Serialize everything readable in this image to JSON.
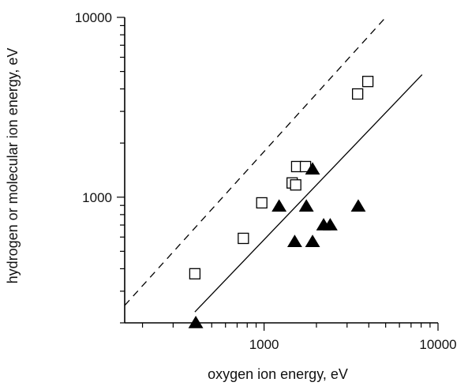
{
  "chart_data": {
    "type": "scatter",
    "title": "",
    "xlabel": "oxygen ion energy,  eV",
    "ylabel": "hydrogen or molecular ion energy,  eV",
    "x_scale": "log",
    "y_scale": "log",
    "xlim": [
      158,
      10000
    ],
    "ylim": [
      200,
      10000
    ],
    "x_ticks": [
      1000,
      10000
    ],
    "x_tick_labels": [
      "1000",
      "10000"
    ],
    "y_ticks": [
      1000,
      10000
    ],
    "y_tick_labels": [
      "1000",
      "10000"
    ],
    "grid": false,
    "colors": {
      "axis": "#000000",
      "open_marker": "#000000",
      "filled_marker": "#000000"
    },
    "series": [
      {
        "marker": "open-square",
        "points": [
          {
            "x": 400,
            "y": 375
          },
          {
            "x": 760,
            "y": 590
          },
          {
            "x": 970,
            "y": 930
          },
          {
            "x": 1450,
            "y": 1200
          },
          {
            "x": 1520,
            "y": 1170
          },
          {
            "x": 1540,
            "y": 1480
          },
          {
            "x": 1730,
            "y": 1480
          },
          {
            "x": 3450,
            "y": 3750
          },
          {
            "x": 3950,
            "y": 4400
          }
        ]
      },
      {
        "marker": "filled-triangle",
        "points": [
          {
            "x": 405,
            "y": 200
          },
          {
            "x": 1220,
            "y": 890
          },
          {
            "x": 1500,
            "y": 565
          },
          {
            "x": 1750,
            "y": 890
          },
          {
            "x": 1900,
            "y": 1430
          },
          {
            "x": 1900,
            "y": 565
          },
          {
            "x": 2200,
            "y": 700
          },
          {
            "x": 2400,
            "y": 700
          },
          {
            "x": 3480,
            "y": 890
          }
        ]
      }
    ],
    "lines": [
      {
        "style": "dashed",
        "points": [
          [
            158,
            250
          ],
          [
            5000,
            10000
          ]
        ]
      },
      {
        "style": "solid",
        "points": [
          [
            400,
            230
          ],
          [
            8100,
            4800
          ]
        ]
      }
    ]
  }
}
